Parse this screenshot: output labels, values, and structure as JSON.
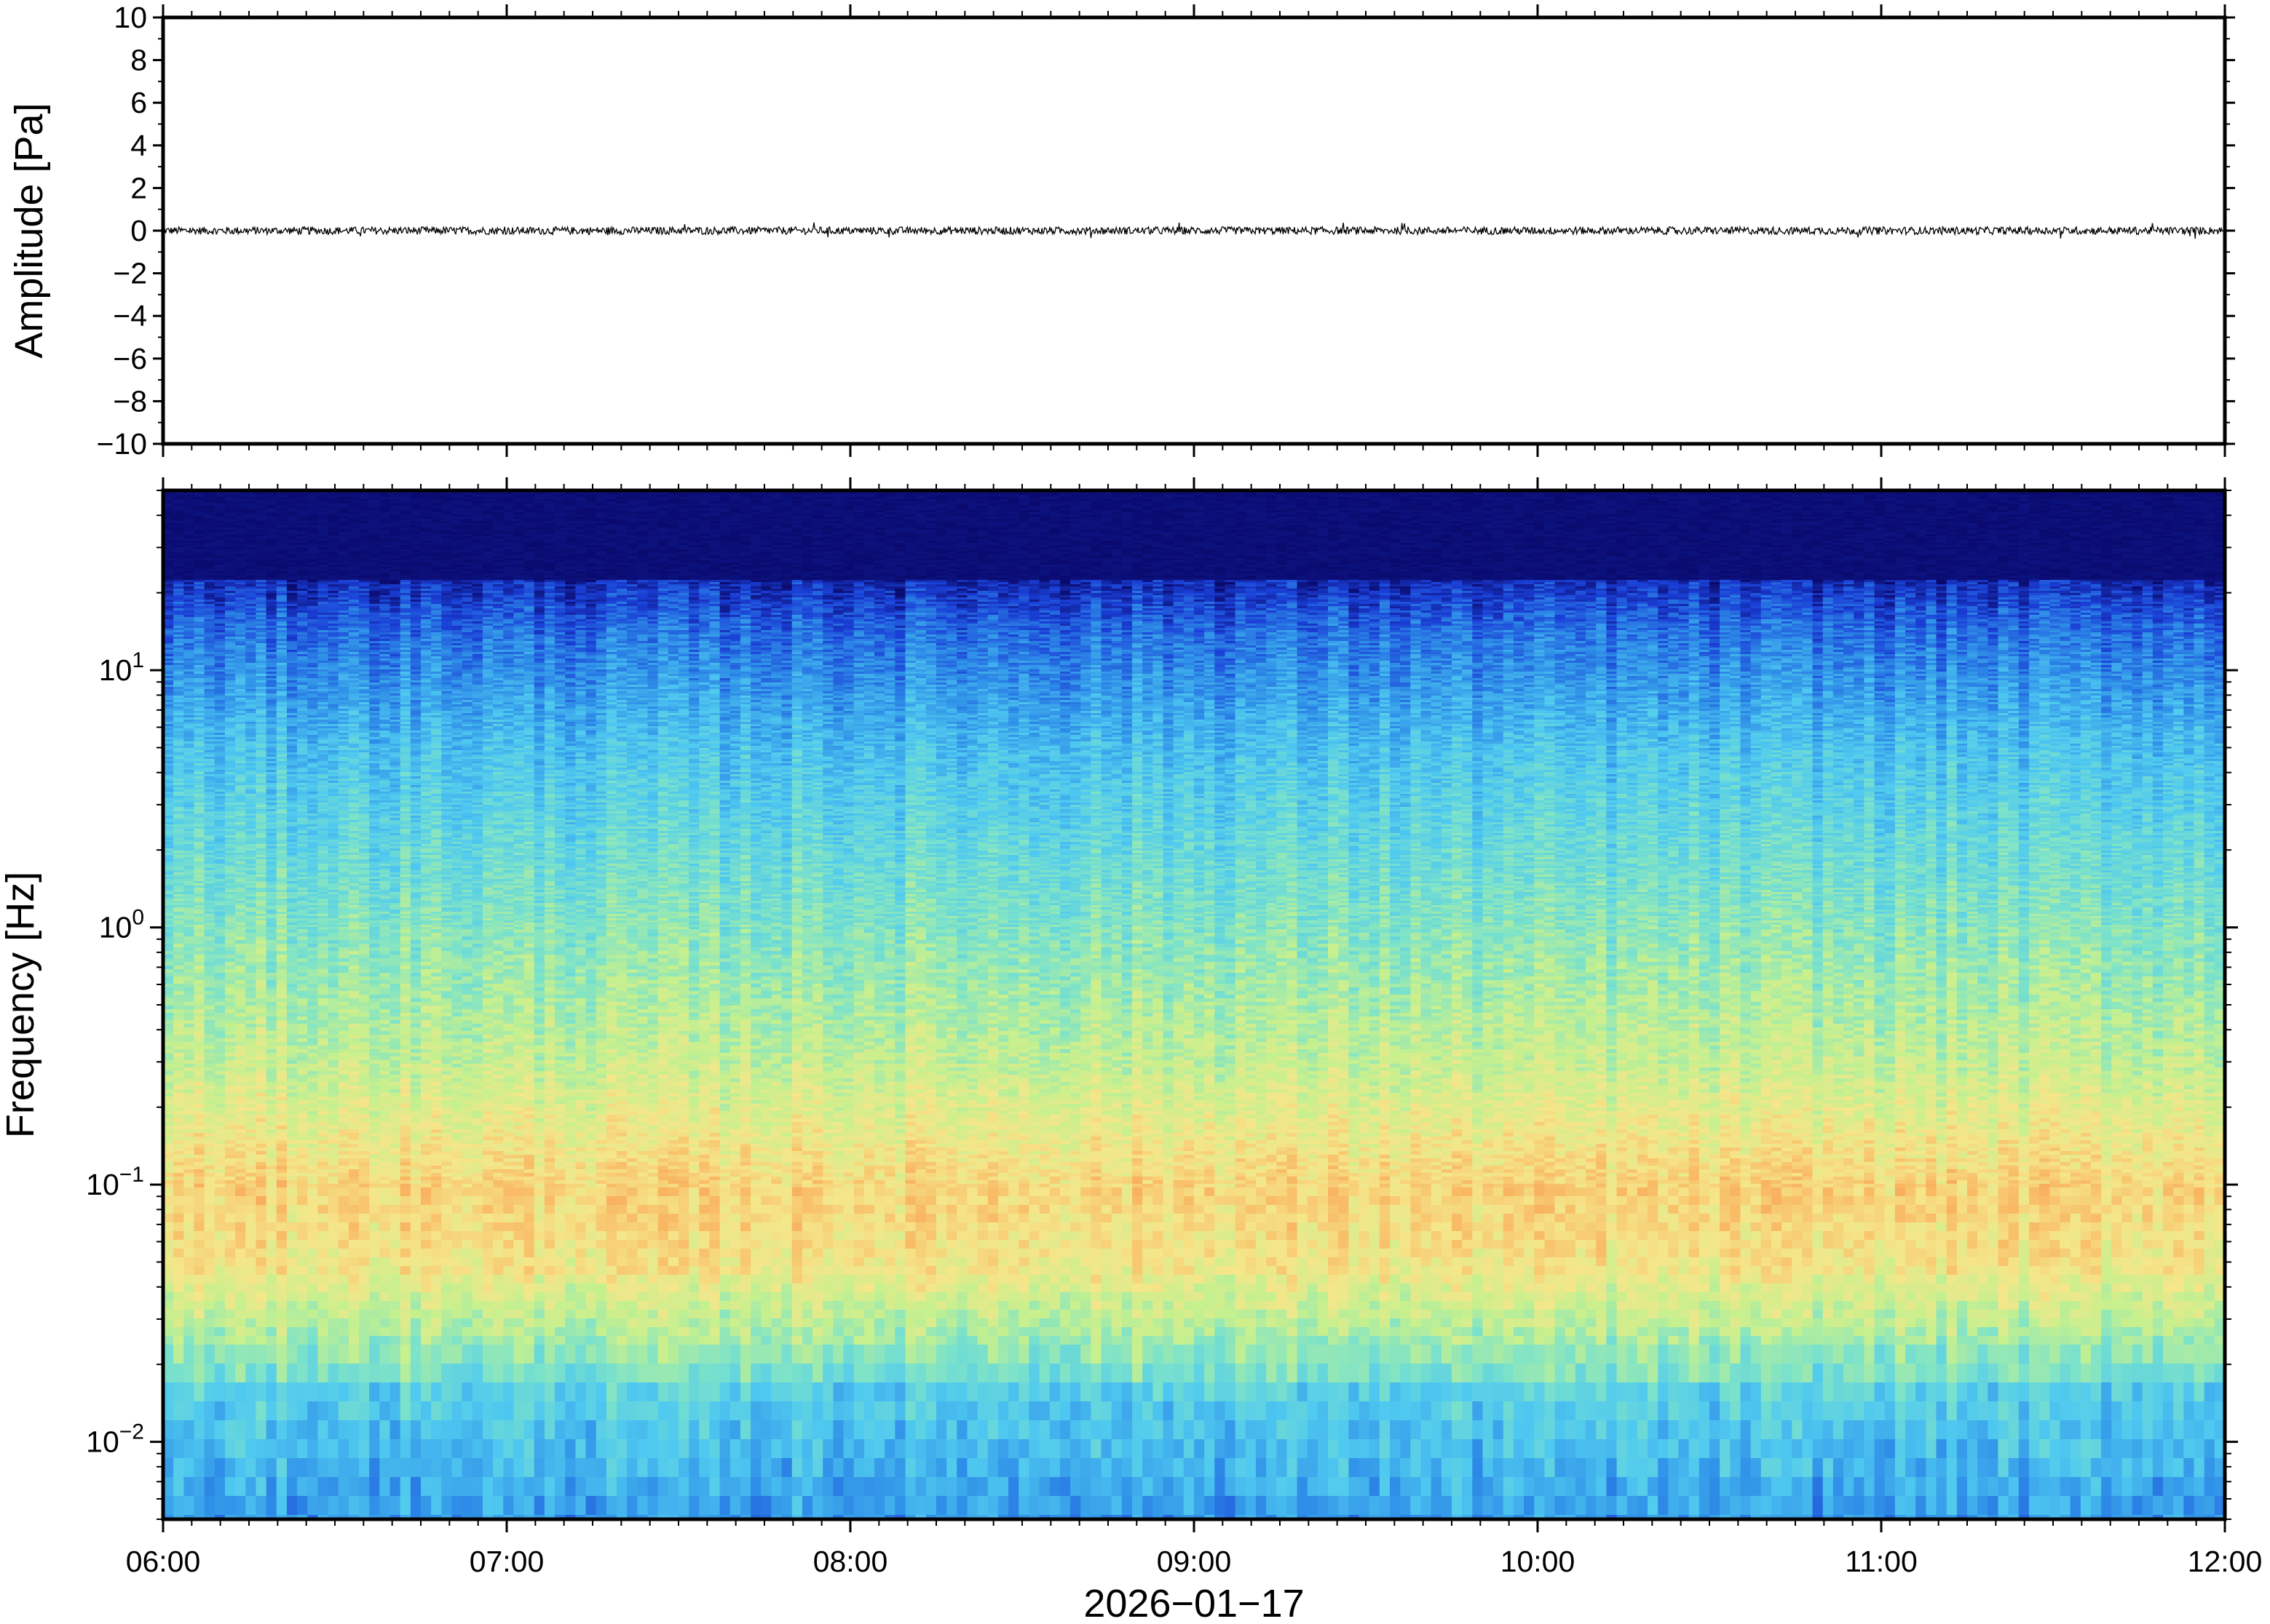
{
  "chart_data": [
    {
      "type": "line",
      "panel": "waveform",
      "ylabel": "Amplitude [Pa]",
      "ylim": [
        -10,
        10
      ],
      "yticks": [
        10,
        8,
        6,
        4,
        2,
        0,
        -2,
        -4,
        -6,
        -8,
        -10
      ],
      "ytick_labels": [
        "10",
        "8",
        "6",
        "4",
        "2",
        "0",
        "−2",
        "−4",
        "−6",
        "−8",
        "−10"
      ],
      "xlim": [
        "06:00",
        "12:00"
      ],
      "series": [
        {
          "baseline": 0,
          "typical_peak_amplitude": 0.3,
          "max_amplitude": 0.6,
          "color": "#000000"
        }
      ]
    },
    {
      "type": "heatmap",
      "panel": "spectrogram",
      "ylabel": "Frequency [Hz]",
      "yscale": "log",
      "ylim": [
        0.005,
        50
      ],
      "yticks": [
        0.01,
        0.1,
        1,
        10
      ],
      "ytick_labels": [
        {
          "base": "10",
          "exp": "−2"
        },
        {
          "base": "10",
          "exp": "−1"
        },
        {
          "base": "10",
          "exp": "0"
        },
        {
          "base": "10",
          "exp": "1"
        }
      ],
      "x": [
        "06:00",
        "07:00",
        "08:00",
        "09:00",
        "10:00",
        "11:00",
        "12:00"
      ],
      "xlim": [
        "06:00",
        "12:00"
      ],
      "xlabel": "2026−01−17",
      "colormap": [
        "#0a0a6e",
        "#1a3fd6",
        "#2f8fe8",
        "#4fc9f0",
        "#7ee3c8",
        "#c6f08e",
        "#f5e68a",
        "#f9b863",
        "#f08a4b"
      ],
      "features": [
        {
          "label": "high-frequency cutoff",
          "freq_hz": 20,
          "color": "#0a0a6e"
        },
        {
          "label": "peak energy band",
          "freq_range_hz": [
            0.04,
            0.12
          ],
          "color": "#f9b863"
        },
        {
          "label": "low-frequency band",
          "freq_range_hz": [
            0.005,
            0.02
          ],
          "color": "#4fc9f0"
        }
      ]
    }
  ]
}
